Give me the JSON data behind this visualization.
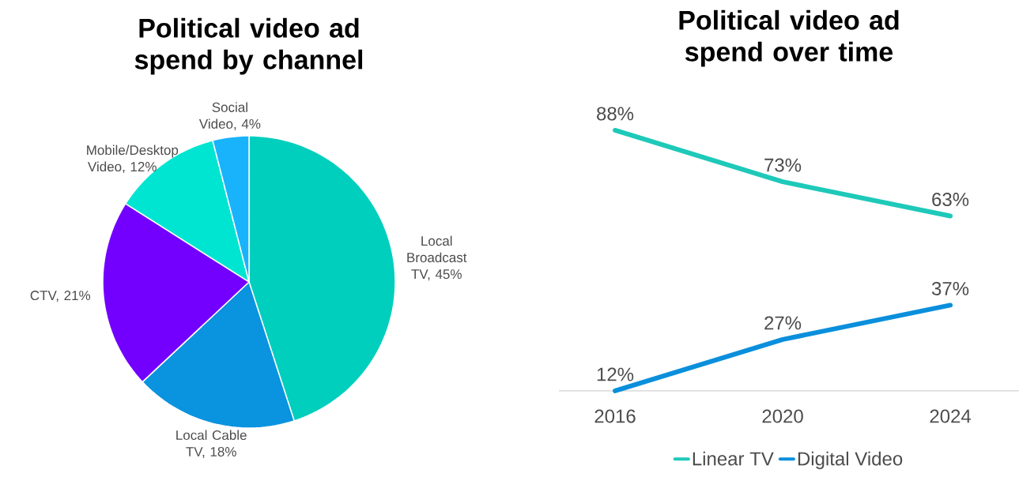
{
  "chart_data": [
    {
      "type": "pie",
      "title": "Political video ad spend by channel",
      "categories": [
        "Local Broadcast TV, 45%",
        "Local Cable TV, 18%",
        "CTV, 21%",
        "Mobile/Desktop Video, 12%",
        "Social Video, 4%"
      ],
      "values": [
        45,
        18,
        21,
        12,
        4
      ],
      "colors": [
        "#00cfbe",
        "#0a93df",
        "#7300ff",
        "#00e5d2",
        "#18b3fb"
      ]
    },
    {
      "type": "line",
      "title": "Political video ad spend over time",
      "categories": [
        "2016",
        "2020",
        "2024"
      ],
      "tick_labels": "x",
      "legend": "bottom",
      "marker": "none",
      "line_style": "solid",
      "series": [
        {
          "name": "Linear TV",
          "color": "#1ec9b9",
          "values": [
            88,
            73,
            63
          ],
          "value_labels": [
            "88%",
            "73%",
            "63%"
          ]
        },
        {
          "name": "Digital Video",
          "color": "#0a8fdc",
          "values": [
            12,
            27,
            37
          ],
          "value_labels": [
            "12%",
            "27%",
            "37%"
          ]
        }
      ]
    }
  ]
}
